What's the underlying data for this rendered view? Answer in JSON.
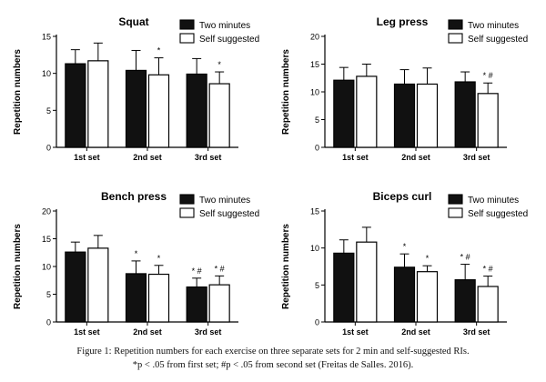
{
  "chart_data": [
    {
      "type": "bar",
      "title": "Squat",
      "ylabel": "Repetition numbers",
      "xlabel": "",
      "categories": [
        "1st set",
        "2nd set",
        "3rd set"
      ],
      "ylim": [
        0,
        15
      ],
      "yticks": [
        0,
        5,
        10,
        15
      ],
      "legend": "top-right",
      "series": [
        {
          "name": "Two minutes",
          "values": [
            11.3,
            10.4,
            9.9
          ],
          "errors": [
            1.9,
            2.7,
            2.1
          ],
          "color": "#111111"
        },
        {
          "name": "Self suggested",
          "values": [
            11.7,
            9.8,
            8.6
          ],
          "errors": [
            2.4,
            2.3,
            1.6
          ],
          "color": "#ffffff"
        }
      ],
      "annotations": [
        {
          "category": "2nd set",
          "series": "Self suggested",
          "text": "*"
        },
        {
          "category": "3rd set",
          "series": "Self suggested",
          "text": "*"
        }
      ]
    },
    {
      "type": "bar",
      "title": "Leg press",
      "ylabel": "Repetition numbers",
      "xlabel": "",
      "categories": [
        "1st set",
        "2nd set",
        "3rd set"
      ],
      "ylim": [
        0,
        20
      ],
      "yticks": [
        0,
        5,
        10,
        15,
        20
      ],
      "legend": "top-right",
      "series": [
        {
          "name": "Two minutes",
          "values": [
            12.1,
            11.4,
            11.8
          ],
          "errors": [
            2.3,
            2.6,
            1.8
          ],
          "color": "#111111"
        },
        {
          "name": "Self suggested",
          "values": [
            12.8,
            11.4,
            9.7
          ],
          "errors": [
            2.2,
            2.9,
            1.9
          ],
          "color": "#ffffff"
        }
      ],
      "annotations": [
        {
          "category": "3rd set",
          "series": "Self suggested",
          "text": "* #"
        }
      ]
    },
    {
      "type": "bar",
      "title": "Bench press",
      "ylabel": "Repetition numbers",
      "xlabel": "",
      "categories": [
        "1st set",
        "2nd set",
        "3rd set"
      ],
      "ylim": [
        0,
        20
      ],
      "yticks": [
        0,
        5,
        10,
        15,
        20
      ],
      "legend": "top-right",
      "series": [
        {
          "name": "Two minutes",
          "values": [
            12.6,
            8.7,
            6.3
          ],
          "errors": [
            1.8,
            2.3,
            1.6
          ],
          "color": "#111111"
        },
        {
          "name": "Self suggested",
          "values": [
            13.3,
            8.6,
            6.7
          ],
          "errors": [
            2.3,
            1.6,
            1.6
          ],
          "color": "#ffffff"
        }
      ],
      "annotations": [
        {
          "category": "2nd set",
          "series": "Two minutes",
          "text": "*"
        },
        {
          "category": "2nd set",
          "series": "Self suggested",
          "text": "*"
        },
        {
          "category": "3rd set",
          "series": "Two minutes",
          "text": "* #"
        },
        {
          "category": "3rd set",
          "series": "Self suggested",
          "text": "* #"
        }
      ]
    },
    {
      "type": "bar",
      "title": "Biceps curl",
      "ylabel": "Repetition numbers",
      "xlabel": "",
      "categories": [
        "1st set",
        "2nd set",
        "3rd set"
      ],
      "ylim": [
        0,
        15
      ],
      "yticks": [
        0,
        5,
        10,
        15
      ],
      "legend": "top-right",
      "series": [
        {
          "name": "Two minutes",
          "values": [
            9.3,
            7.4,
            5.7
          ],
          "errors": [
            1.8,
            1.8,
            2.1
          ],
          "color": "#111111"
        },
        {
          "name": "Self suggested",
          "values": [
            10.8,
            6.8,
            4.8
          ],
          "errors": [
            2.0,
            0.8,
            1.4
          ],
          "color": "#ffffff"
        }
      ],
      "annotations": [
        {
          "category": "2nd set",
          "series": "Two minutes",
          "text": "*"
        },
        {
          "category": "2nd set",
          "series": "Self suggested",
          "text": "*"
        },
        {
          "category": "3rd set",
          "series": "Two minutes",
          "text": "* #"
        },
        {
          "category": "3rd set",
          "series": "Self suggested",
          "text": "* #"
        }
      ]
    }
  ],
  "caption": {
    "line1": "Figure 1: Repetition numbers for each exercise on three separate sets for 2 min and self-suggested RIs.",
    "line2": "*p < .05 from first set; #p < .05 from second set (Freitas de Salles. 2016)."
  }
}
